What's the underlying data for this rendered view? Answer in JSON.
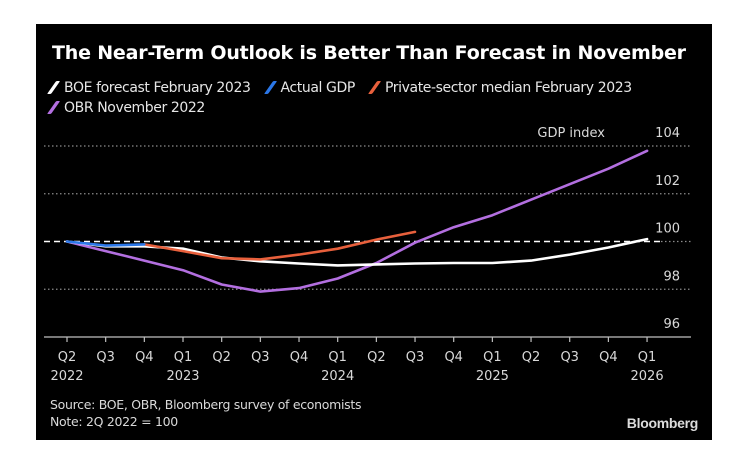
{
  "chart_data": {
    "type": "line",
    "title": "The Near-Term Outlook is Better Than Forecast in November",
    "ylabel": "GDP index",
    "xlabel": "",
    "ylim": [
      96,
      104
    ],
    "yticks": [
      96,
      98,
      100,
      102,
      104
    ],
    "reference_line": 100,
    "grid": true,
    "legend_position": "top-left",
    "categories": [
      "Q2 2022",
      "Q3 2022",
      "Q4 2022",
      "Q1 2023",
      "Q2 2023",
      "Q3 2023",
      "Q4 2023",
      "Q1 2024",
      "Q2 2024",
      "Q3 2024",
      "Q4 2024",
      "Q1 2025",
      "Q2 2025",
      "Q3 2025",
      "Q4 2025",
      "Q1 2026"
    ],
    "x_tick_labels": [
      {
        "q": "Q2",
        "year": "2022"
      },
      {
        "q": "Q3",
        "year": ""
      },
      {
        "q": "Q4",
        "year": ""
      },
      {
        "q": "Q1",
        "year": "2023"
      },
      {
        "q": "Q2",
        "year": ""
      },
      {
        "q": "Q3",
        "year": ""
      },
      {
        "q": "Q4",
        "year": ""
      },
      {
        "q": "Q1",
        "year": "2024"
      },
      {
        "q": "Q2",
        "year": ""
      },
      {
        "q": "Q3",
        "year": ""
      },
      {
        "q": "Q4",
        "year": ""
      },
      {
        "q": "Q1",
        "year": "2025"
      },
      {
        "q": "Q2",
        "year": ""
      },
      {
        "q": "Q3",
        "year": ""
      },
      {
        "q": "Q4",
        "year": ""
      },
      {
        "q": "Q1",
        "year": "2026"
      }
    ],
    "series": [
      {
        "name": "OBR November 2022",
        "color": "#b36fe0",
        "values": [
          100,
          99.6,
          99.2,
          98.8,
          98.2,
          97.9,
          98.05,
          98.45,
          99.1,
          99.95,
          100.6,
          101.1,
          101.75,
          102.4,
          103.05,
          103.8
        ]
      },
      {
        "name": "BOE forecast February 2023",
        "color": "#ffffff",
        "values": [
          100,
          99.8,
          99.8,
          99.7,
          99.33,
          99.17,
          99.08,
          99.0,
          99.04,
          99.08,
          99.1,
          99.1,
          99.2,
          99.45,
          99.75,
          100.1
        ]
      },
      {
        "name": "Private-sector median February 2023",
        "color": "#e8603c",
        "values": [
          null,
          null,
          99.88,
          99.6,
          99.3,
          99.25,
          99.45,
          99.7,
          100.08,
          100.4,
          null,
          null,
          null,
          null,
          null,
          null
        ]
      },
      {
        "name": "Actual GDP",
        "color": "#2b77e8",
        "values": [
          100,
          99.83,
          99.88,
          null,
          null,
          null,
          null,
          null,
          null,
          null,
          null,
          null,
          null,
          null,
          null,
          null
        ]
      }
    ],
    "legend": [
      {
        "label": "BOE forecast February 2023",
        "color": "#ffffff"
      },
      {
        "label": "Actual GDP",
        "color": "#2b77e8"
      },
      {
        "label": "Private-sector median February 2023",
        "color": "#e8603c"
      },
      {
        "label": "OBR November 2022",
        "color": "#b36fe0"
      }
    ],
    "source": "Source: BOE, OBR, Bloomberg survey of economists",
    "note": "Note: 2Q 2022 = 100"
  },
  "brand": "Bloomberg"
}
